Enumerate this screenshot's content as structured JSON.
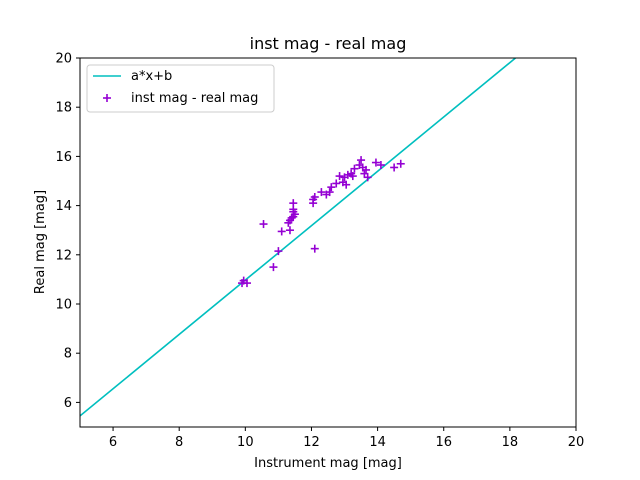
{
  "chart_data": {
    "type": "scatter",
    "title": "inst mag - real mag",
    "xlabel": "Instrument mag [mag]",
    "ylabel": "Real mag [mag]",
    "xlim": [
      5,
      20
    ],
    "ylim": [
      5,
      20
    ],
    "xticks": [
      6,
      8,
      10,
      12,
      14,
      16,
      18,
      20
    ],
    "yticks": [
      6,
      8,
      10,
      12,
      14,
      16,
      18,
      20
    ],
    "grid": false,
    "legend_position": "upper-left",
    "series": [
      {
        "name": "a*x+b",
        "kind": "line",
        "color": "#00bfbf",
        "x": [
          5.0,
          18.17
        ],
        "y": [
          5.45,
          20.0
        ]
      },
      {
        "name": "inst mag - real mag",
        "kind": "scatter",
        "marker": "plus",
        "color": "#9400d3",
        "points": [
          [
            9.9,
            10.85
          ],
          [
            9.95,
            10.95
          ],
          [
            10.05,
            10.85
          ],
          [
            10.55,
            13.25
          ],
          [
            10.85,
            11.5
          ],
          [
            11.0,
            12.15
          ],
          [
            11.1,
            12.95
          ],
          [
            11.3,
            13.3
          ],
          [
            11.35,
            13.4
          ],
          [
            11.35,
            13.0
          ],
          [
            11.4,
            13.5
          ],
          [
            11.45,
            13.55
          ],
          [
            11.45,
            13.75
          ],
          [
            11.45,
            13.85
          ],
          [
            11.45,
            14.1
          ],
          [
            11.5,
            13.65
          ],
          [
            12.05,
            14.1
          ],
          [
            12.05,
            14.25
          ],
          [
            12.1,
            14.35
          ],
          [
            12.1,
            12.25
          ],
          [
            12.3,
            14.55
          ],
          [
            12.45,
            14.45
          ],
          [
            12.55,
            14.55
          ],
          [
            12.6,
            14.75
          ],
          [
            12.75,
            14.9
          ],
          [
            12.85,
            15.2
          ],
          [
            12.95,
            14.95
          ],
          [
            13.0,
            15.15
          ],
          [
            13.05,
            14.85
          ],
          [
            13.1,
            15.25
          ],
          [
            13.2,
            15.3
          ],
          [
            13.25,
            15.2
          ],
          [
            13.3,
            15.5
          ],
          [
            13.45,
            15.65
          ],
          [
            13.5,
            15.85
          ],
          [
            13.55,
            15.55
          ],
          [
            13.6,
            15.3
          ],
          [
            13.65,
            15.45
          ],
          [
            13.7,
            15.15
          ],
          [
            13.95,
            15.75
          ],
          [
            14.1,
            15.65
          ],
          [
            14.5,
            15.55
          ],
          [
            14.7,
            15.7
          ]
        ]
      }
    ]
  }
}
